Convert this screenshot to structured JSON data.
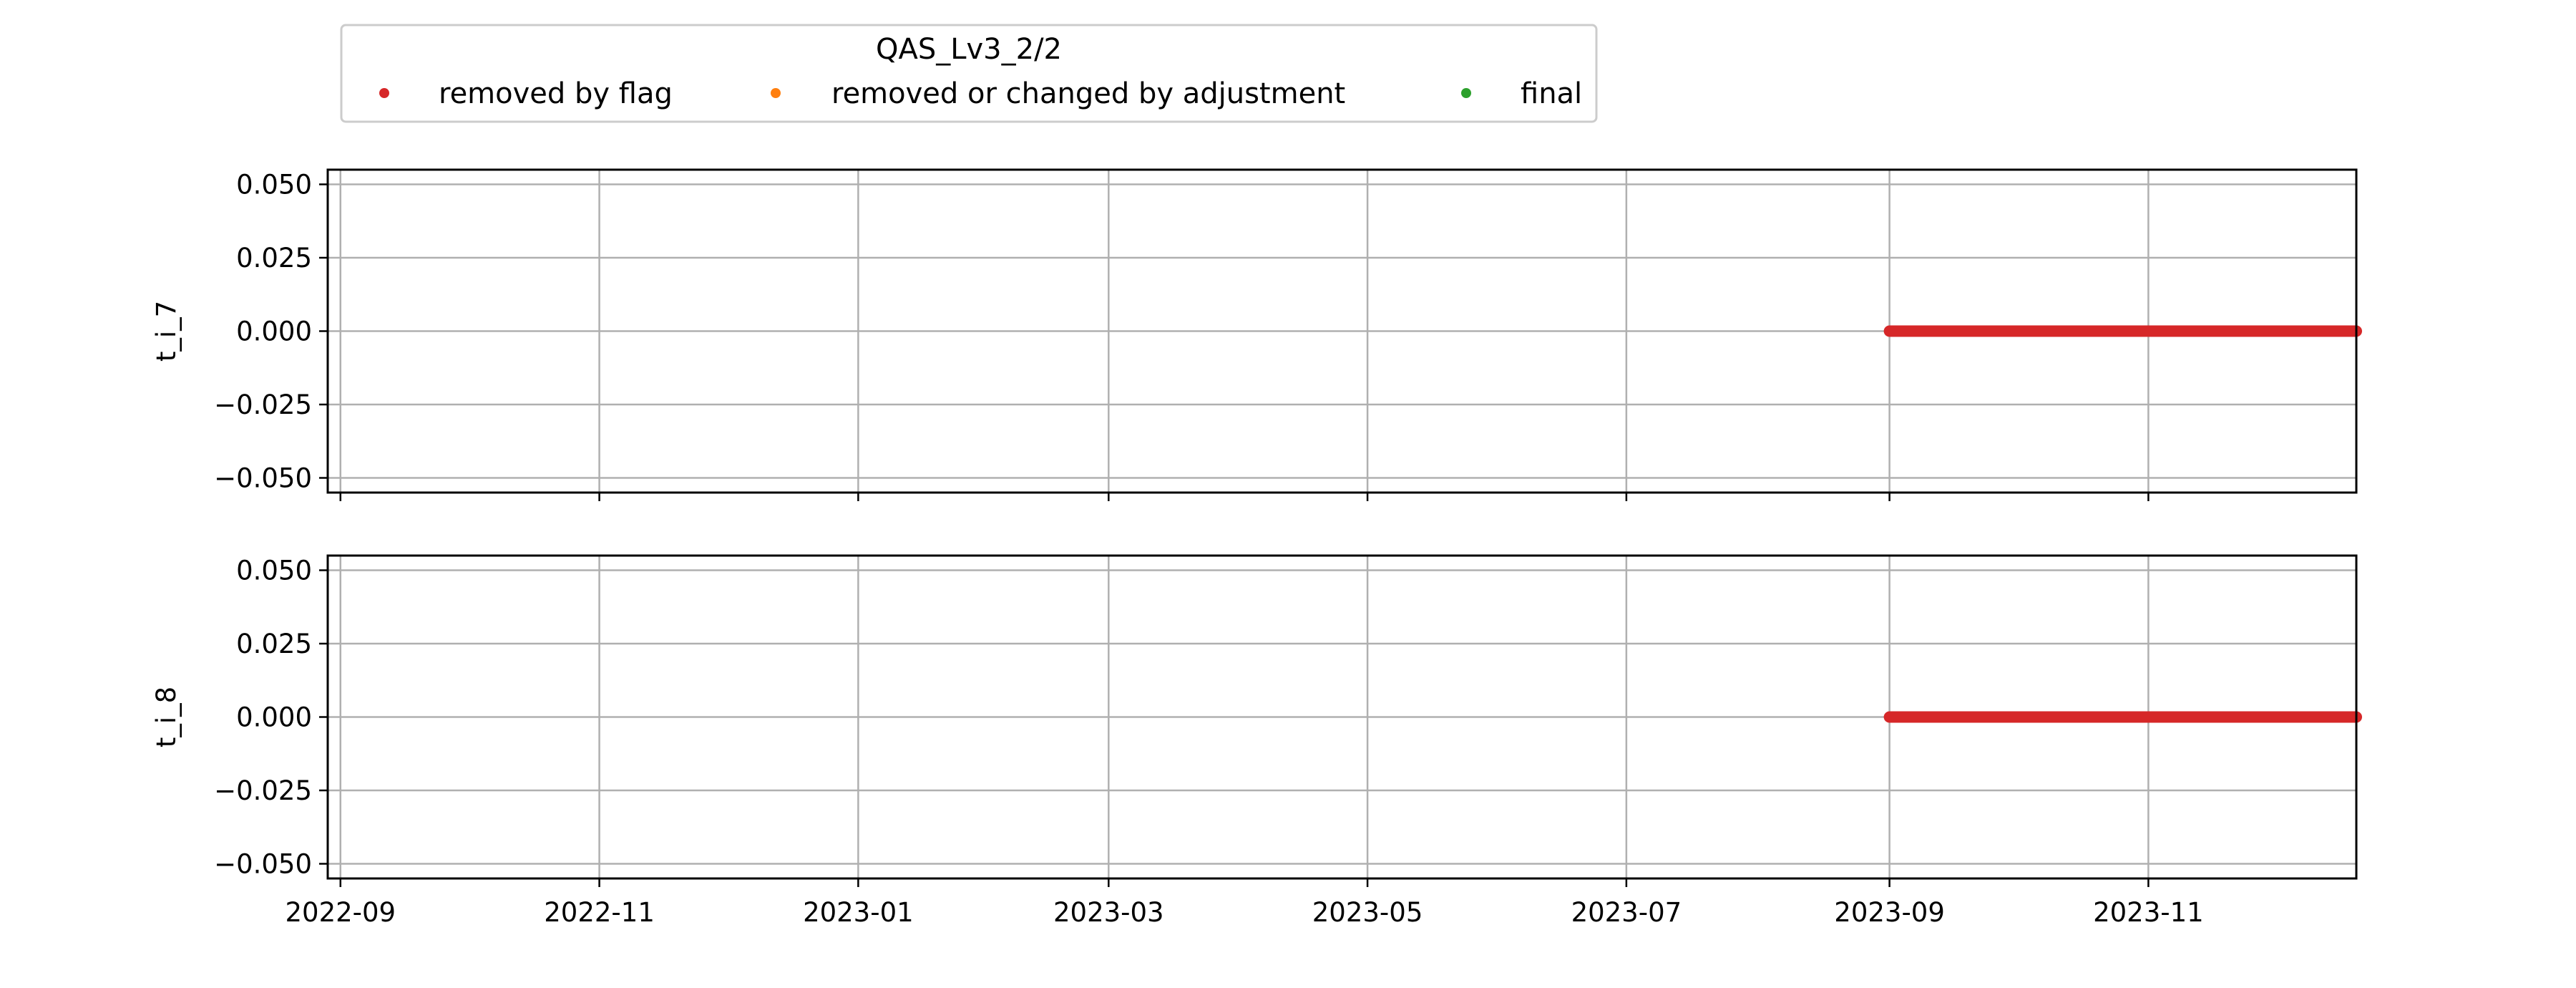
{
  "chart_data": {
    "type": "scatter",
    "legend": {
      "title": "QAS_Lv3_2/2",
      "placement": "top-left, above plots",
      "entries": [
        {
          "label": "removed by flag",
          "color": "#d62728"
        },
        {
          "label": "removed or changed by adjustment",
          "color": "#ff7f0e"
        },
        {
          "label": "final",
          "color": "#2ca02c"
        }
      ]
    },
    "xlim": [
      "2022-08-29",
      "2023-12-20"
    ],
    "x_ticks": [
      "2022-09",
      "2022-11",
      "2023-01",
      "2023-03",
      "2023-05",
      "2023-07",
      "2023-09",
      "2023-11"
    ],
    "x_tick_dates": [
      "2022-09-01",
      "2022-11-01",
      "2023-01-01",
      "2023-03-01",
      "2023-05-01",
      "2023-07-01",
      "2023-09-01",
      "2023-11-01"
    ],
    "grid": true,
    "panels": [
      {
        "ylabel": "t_i_7",
        "ylim": [
          -0.055,
          0.055
        ],
        "y_ticks": [
          "0.050",
          "0.025",
          "0.000",
          "−0.025",
          "−0.050"
        ],
        "y_tick_values": [
          0.05,
          0.025,
          0.0,
          -0.025,
          -0.05
        ],
        "series": [
          {
            "name": "removed by flag",
            "color": "#d62728",
            "x_start": "2023-09-01",
            "x_end": "2023-12-20",
            "y": 0.0
          }
        ]
      },
      {
        "ylabel": "t_i_8",
        "ylim": [
          -0.055,
          0.055
        ],
        "y_ticks": [
          "0.050",
          "0.025",
          "0.000",
          "−0.025",
          "−0.050"
        ],
        "y_tick_values": [
          0.05,
          0.025,
          0.0,
          -0.025,
          -0.05
        ],
        "series": [
          {
            "name": "removed by flag",
            "color": "#d62728",
            "x_start": "2023-09-01",
            "x_end": "2023-12-20",
            "y": 0.0
          }
        ]
      }
    ]
  }
}
